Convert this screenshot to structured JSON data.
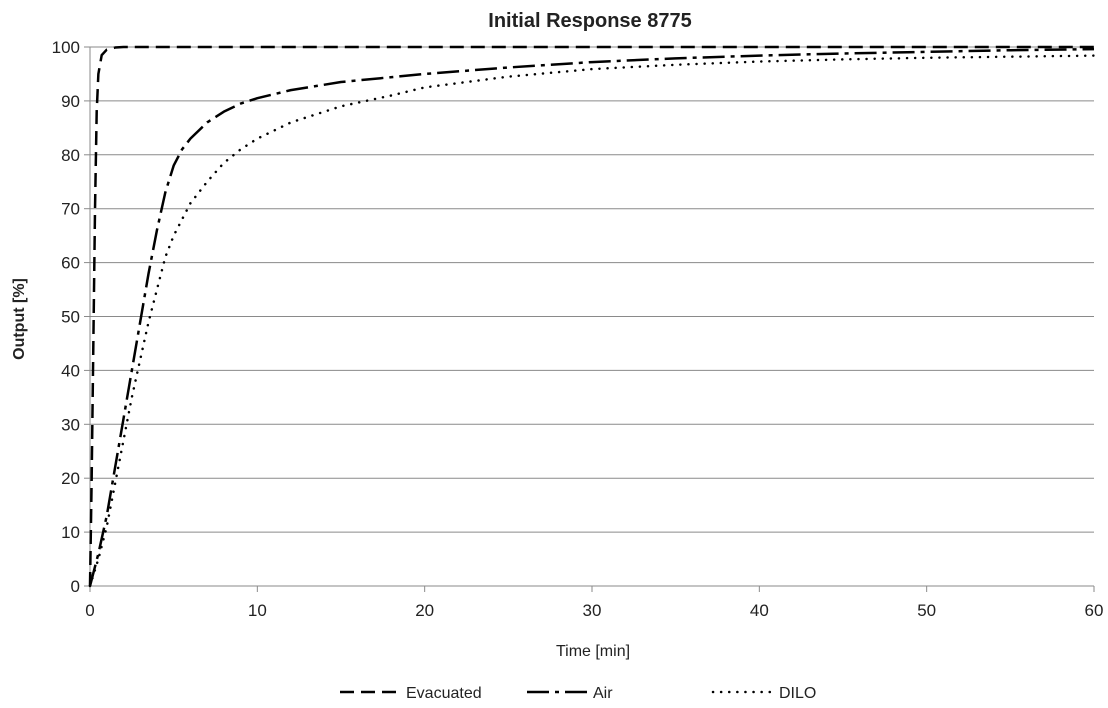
{
  "chart_data": {
    "type": "line",
    "title": "Initial Response 8775",
    "xlabel": "Time [min]",
    "ylabel": "Output [%]",
    "xlim": [
      0,
      60
    ],
    "ylim": [
      0,
      100
    ],
    "x_ticks": [
      0,
      10,
      20,
      30,
      40,
      50,
      60
    ],
    "y_ticks": [
      0,
      10,
      20,
      30,
      40,
      50,
      60,
      70,
      80,
      90,
      100
    ],
    "grid": "horizontal",
    "legend_position": "bottom",
    "series": [
      {
        "name": "Evacuated",
        "style": "dashed",
        "x": [
          0,
          0.1,
          0.2,
          0.3,
          0.4,
          0.5,
          0.7,
          1,
          1.5,
          2,
          5,
          10,
          20,
          30,
          40,
          50,
          60
        ],
        "y": [
          0,
          20,
          45,
          70,
          88,
          95,
          98.5,
          99.5,
          99.9,
          100,
          100,
          100,
          100,
          100,
          100,
          100,
          100
        ]
      },
      {
        "name": "Air",
        "style": "dash-dot",
        "x": [
          0,
          0.5,
          1,
          1.5,
          2,
          2.5,
          3,
          3.5,
          4,
          4.5,
          5,
          5.5,
          6,
          7,
          8,
          9,
          10,
          12,
          15,
          20,
          25,
          30,
          35,
          40,
          45,
          50,
          55,
          60
        ],
        "y": [
          0,
          6,
          13,
          22,
          31,
          40,
          49,
          58,
          66,
          73,
          78,
          81,
          83,
          86,
          88,
          89.5,
          90.5,
          92,
          93.5,
          95,
          96.2,
          97.2,
          97.9,
          98.4,
          98.8,
          99.1,
          99.4,
          99.6
        ]
      },
      {
        "name": "DILO",
        "style": "dotted",
        "x": [
          0,
          0.5,
          1,
          1.5,
          2,
          2.5,
          3,
          3.5,
          4,
          4.5,
          5,
          5.5,
          6,
          7,
          8,
          9,
          10,
          12,
          15,
          18,
          20,
          25,
          30,
          35,
          40,
          45,
          50,
          55,
          60
        ],
        "y": [
          0,
          5,
          11,
          19,
          27,
          35,
          42,
          49,
          55,
          61,
          65,
          68,
          71,
          75,
          78.5,
          81,
          83,
          86,
          89,
          91,
          92.5,
          94.5,
          95.9,
          96.7,
          97.3,
          97.7,
          98,
          98.2,
          98.4
        ]
      }
    ]
  }
}
